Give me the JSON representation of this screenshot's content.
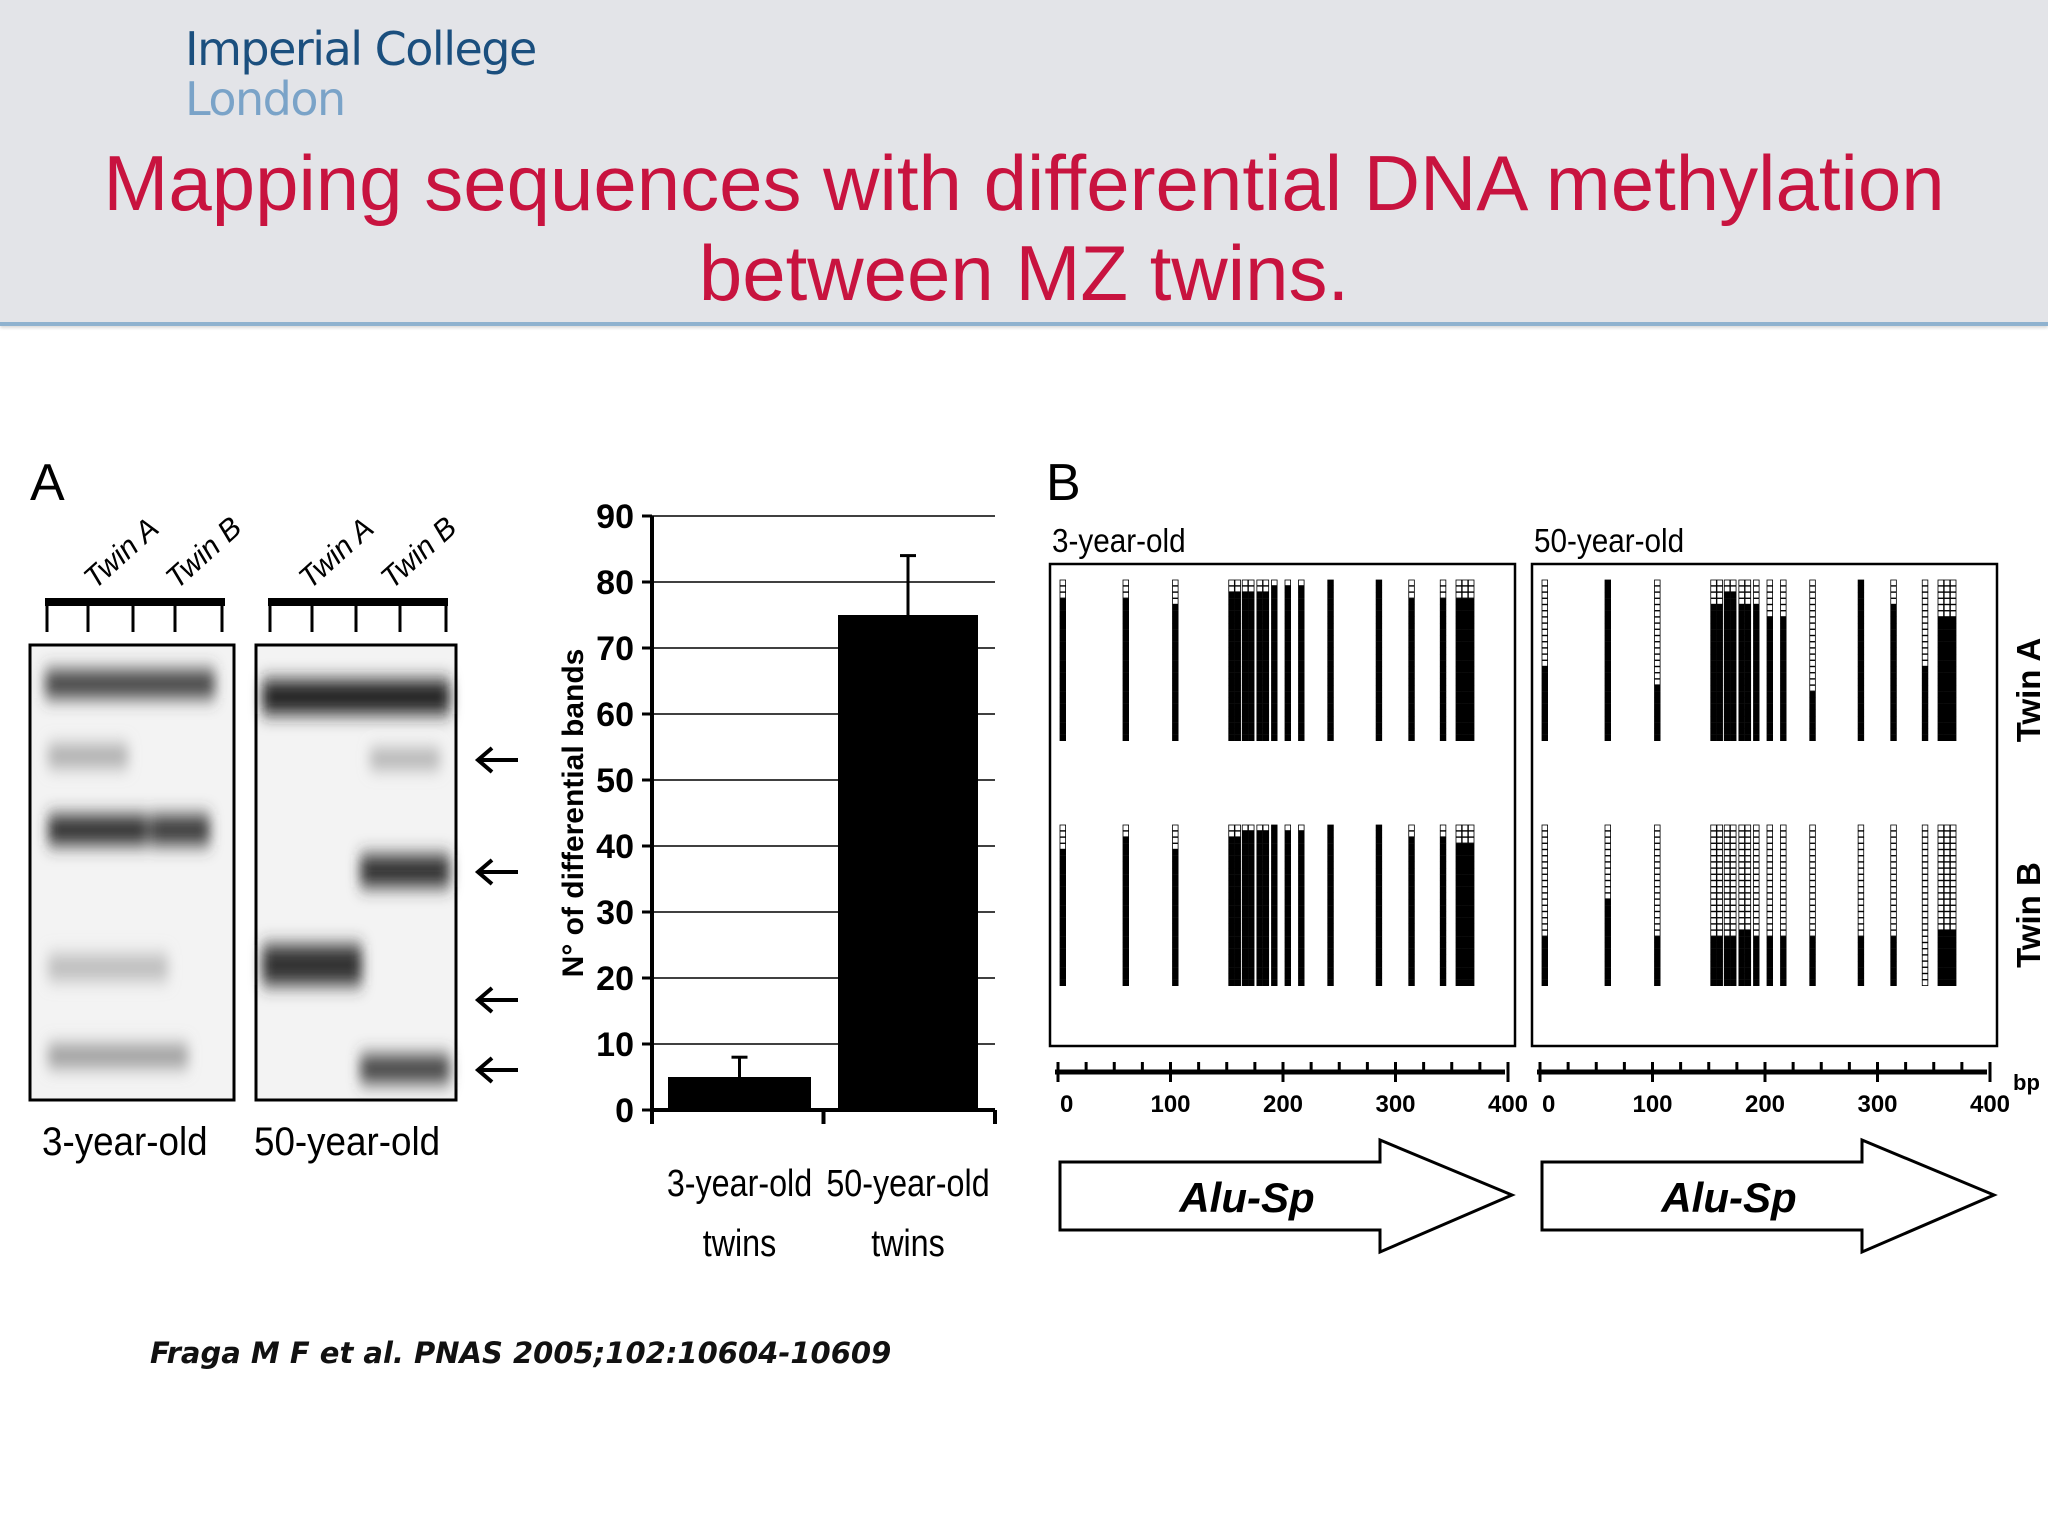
{
  "logo": {
    "line1": "Imperial College",
    "line2": "London"
  },
  "title": {
    "line1": "Mapping sequences with differential DNA methylation",
    "line2": "between MZ twins."
  },
  "citation": "Fraga M F et al. PNAS 2005;102:10604-10609",
  "panelA": {
    "letter": "A",
    "lane_labels": [
      "Twin A",
      "Twin B"
    ],
    "gel_labels": [
      "3-year-old",
      "50-year-old"
    ]
  },
  "panelB": {
    "letter": "B",
    "groups": [
      "3-year-old",
      "50-year-old"
    ],
    "rows": [
      "Twin A",
      "Twin B"
    ],
    "axis_ticks": [
      "0",
      "100",
      "200",
      "300",
      "400"
    ],
    "axis_unit": "bp",
    "arrow_label": "Alu-Sp"
  },
  "chart_data": {
    "type": "bar",
    "categories": [
      "3-year-old twins",
      "50-year-old twins"
    ],
    "category_lines": [
      [
        "3-year-old",
        "twins"
      ],
      [
        "50-year-old",
        "twins"
      ]
    ],
    "values": [
      5,
      75
    ],
    "errors": [
      3,
      9
    ],
    "ylabel": "N° of differential bands",
    "ylim": [
      0,
      90
    ],
    "yticks": [
      0,
      10,
      20,
      30,
      40,
      50,
      60,
      70,
      80,
      90
    ],
    "grid": true,
    "colors": {
      "bar": "#000000"
    }
  }
}
